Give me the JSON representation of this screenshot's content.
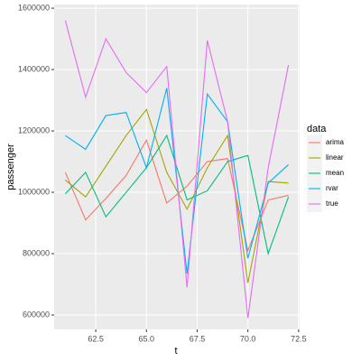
{
  "chart_data": {
    "type": "line",
    "x_label": "t",
    "y_label": "passenger",
    "legend_title": "data",
    "x": [
      61,
      62,
      63,
      64,
      65,
      66,
      67,
      68,
      69,
      70,
      71,
      72
    ],
    "series": [
      {
        "name": "arima",
        "color": "#F8766D",
        "values": [
          1065000,
          910000,
          980000,
          1055000,
          1170000,
          965000,
          1020000,
          1100000,
          1110000,
          810000,
          975000,
          990000
        ]
      },
      {
        "name": "linear",
        "color": "#A3A500",
        "values": [
          1040000,
          985000,
          1085000,
          1185000,
          1270000,
          1065000,
          945000,
          1080000,
          1185000,
          705000,
          1035000,
          1030000
        ]
      },
      {
        "name": "mean",
        "color": "#00BF7D",
        "values": [
          995000,
          1065000,
          920000,
          1000000,
          1080000,
          1185000,
          975000,
          1005000,
          1100000,
          1120000,
          800000,
          985000
        ]
      },
      {
        "name": "rvar",
        "color": "#00B0F6",
        "values": [
          1185000,
          1140000,
          1250000,
          1260000,
          1080000,
          1340000,
          735000,
          1320000,
          1230000,
          785000,
          1030000,
          1090000
        ]
      },
      {
        "name": "true",
        "color": "#E76BF3",
        "values": [
          1560000,
          1310000,
          1500000,
          1390000,
          1325000,
          1410000,
          690000,
          1495000,
          1230000,
          590000,
          1080000,
          1415000
        ]
      }
    ],
    "xlim": [
      60.45,
      72.55
    ],
    "xticks": [
      62.5,
      {
        "value": 65,
        "label": "65.0"
      },
      67.5,
      {
        "value": 70,
        "label": "70.0"
      },
      72.5
    ],
    "ylim": [
      553000,
      1612000
    ],
    "yticks": [
      600000,
      800000,
      1000000,
      1200000,
      1400000,
      1600000
    ],
    "grid": true,
    "legend": "right"
  }
}
